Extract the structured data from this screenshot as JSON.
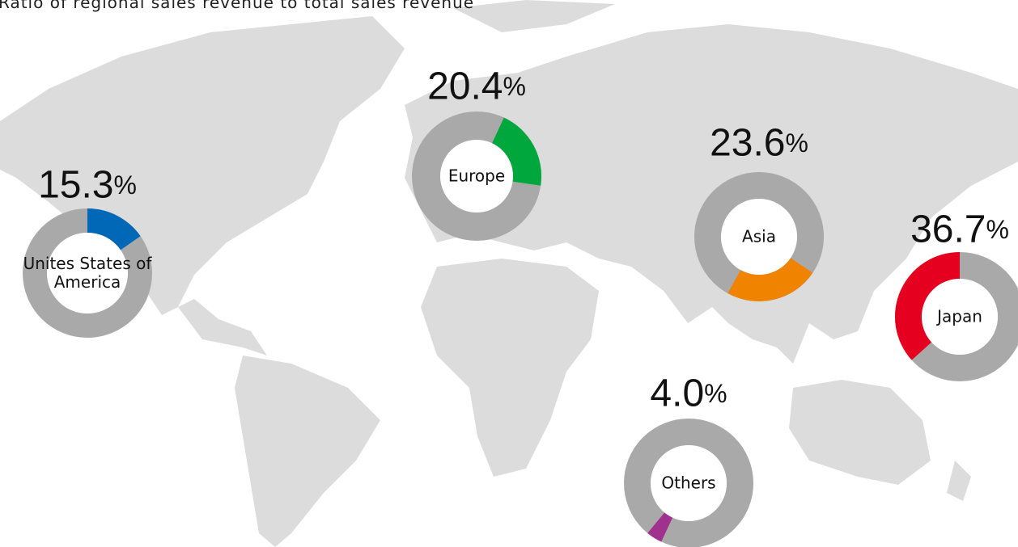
{
  "chart_data": {
    "type": "donut",
    "title": "Ratio of regional sales revenue to total sales revenue",
    "categories": [
      "Unites States of America",
      "Europe",
      "Asia",
      "Japan",
      "Others"
    ],
    "values": [
      15.3,
      20.4,
      23.6,
      36.7,
      4.0
    ],
    "value_labels": [
      "15.3%",
      "20.4%",
      "23.6%",
      "36.7%",
      "4.0%"
    ],
    "colors": [
      "#0068b7",
      "#00a73c",
      "#f08300",
      "#e60020",
      "#a0318f"
    ]
  }
}
